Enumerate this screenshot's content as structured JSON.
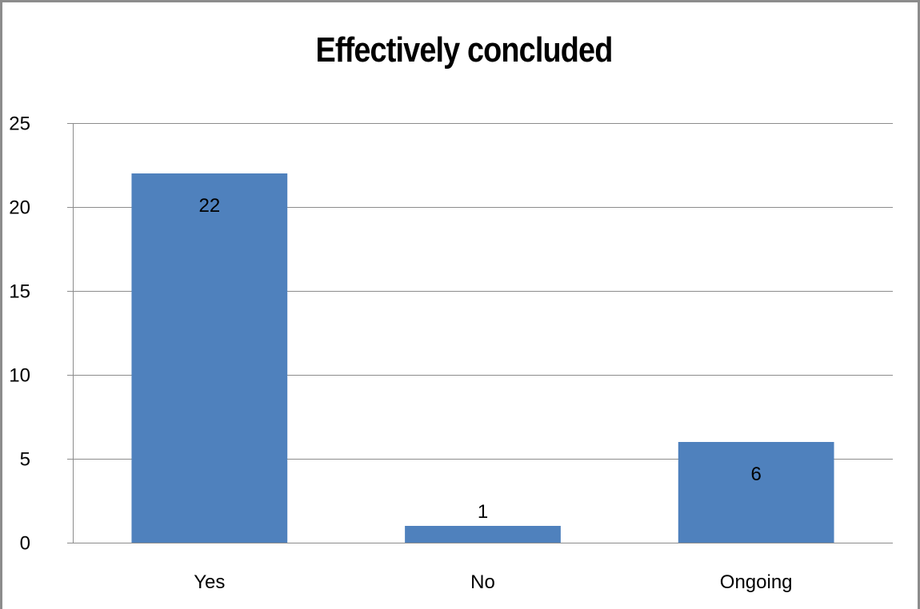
{
  "chart_data": {
    "type": "bar",
    "title": "Effectively concluded",
    "categories": [
      "Yes",
      "No",
      "Ongoing"
    ],
    "values": [
      22,
      1,
      6
    ],
    "data_labels": [
      "22",
      "1",
      "6"
    ],
    "xlabel": "",
    "ylabel": "",
    "ylim": [
      0,
      25
    ],
    "yticks": [
      0,
      5,
      10,
      15,
      20,
      25
    ],
    "ytick_labels": [
      "0",
      "5",
      "10",
      "15",
      "20",
      "25"
    ],
    "grid": true,
    "legend": "none",
    "colors": {
      "bar": "#4f81bd",
      "grid": "#8c8c8c",
      "frame": "#8c8c8c"
    }
  }
}
